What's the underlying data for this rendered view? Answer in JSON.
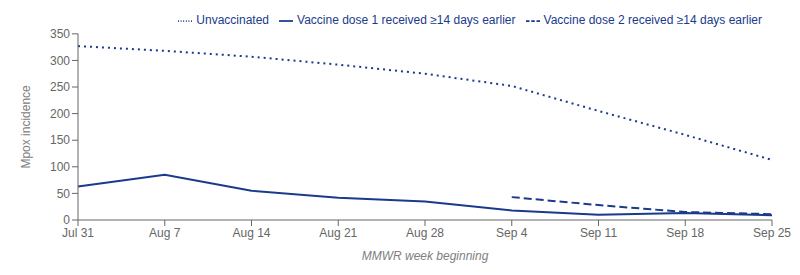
{
  "chart_data": {
    "type": "line",
    "categories": [
      "Jul 31",
      "Aug 7",
      "Aug 14",
      "Aug 21",
      "Aug 28",
      "Sep 4",
      "Sep 11",
      "Sep 18",
      "Sep 25"
    ],
    "series": [
      {
        "name": "Vaccine dose 1 received ≥14 days earlier",
        "color": "#1a3a8c",
        "line_style": "solid",
        "values": [
          63,
          85,
          55,
          42,
          35,
          18,
          10,
          13,
          9
        ]
      },
      {
        "name": "Vaccine dose 2 received ≥14 days earlier",
        "color": "#1a3a8c",
        "line_style": "dashed",
        "values": [
          null,
          null,
          null,
          null,
          null,
          43,
          28,
          15,
          11
        ]
      },
      {
        "name": "Unvaccinated",
        "color": "#1a3a8c",
        "line_style": "dotted",
        "values": [
          327,
          318,
          307,
          292,
          275,
          252,
          205,
          160,
          113
        ]
      }
    ],
    "xlabel": "MMWR week beginning",
    "ylabel": "Mpox incidence",
    "ylim": [
      0,
      350
    ],
    "yticks": [
      0,
      50,
      100,
      150,
      200,
      250,
      300,
      350
    ],
    "grid": false,
    "legend": "upper right"
  }
}
